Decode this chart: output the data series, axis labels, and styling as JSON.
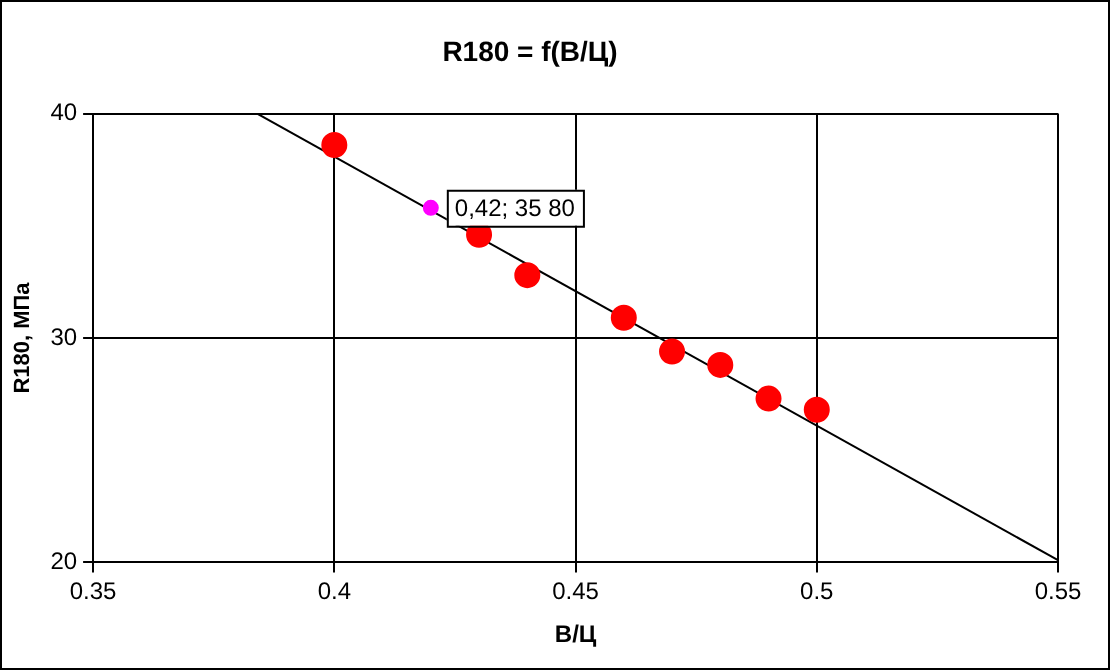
{
  "chart_data": {
    "type": "scatter",
    "title": "R180 = f(В/Ц)",
    "xlabel": "В/Ц",
    "ylabel": "R180, МПа",
    "xlim": [
      0.35,
      0.55
    ],
    "xticks": [
      0.35,
      0.4,
      0.45,
      0.5,
      0.55
    ],
    "ylim": [
      20,
      40
    ],
    "yticks": [
      20,
      30,
      40
    ],
    "grid": true,
    "legend": false,
    "marker": "circle",
    "series": [
      {
        "color": "#ff0000",
        "x": [
          0.4,
          0.43,
          0.44,
          0.46,
          0.47,
          0.48,
          0.49,
          0.5
        ],
        "values": [
          38.6,
          34.6,
          32.8,
          30.9,
          29.4,
          28.8,
          27.3,
          26.8
        ]
      },
      {
        "color": "#ff00ff",
        "x": [
          0.42
        ],
        "values": [
          35.8
        ]
      },
      {
        "type": "line",
        "marker": "none",
        "color": "#000000",
        "x": [
          0.384,
          0.55
        ],
        "values": [
          40,
          20.1
        ]
      }
    ],
    "annotations": [
      {
        "text": "0,42; 35 80",
        "x": 0.42,
        "y": 35.8
      }
    ]
  }
}
